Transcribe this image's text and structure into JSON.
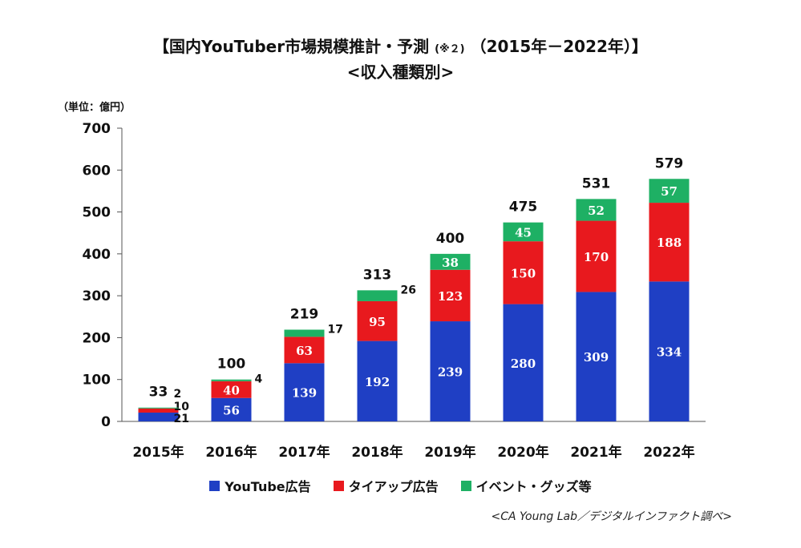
{
  "header": {
    "title_main": "【国内YouTuber市場規模推計・予測",
    "title_note": "(※２)",
    "title_years": "（2015年－2022年）】",
    "subtitle": "<収入種類別>"
  },
  "unit_label": "（単位：億円）",
  "source": "<CA Young Lab／デジタルインファクト調べ>",
  "colors": {
    "youtube_ad": "#1f3fc4",
    "tieup_ad": "#e8191e",
    "event_goods": "#1eb064"
  },
  "chart_data": {
    "type": "bar",
    "stacked": true,
    "categories": [
      "2015年",
      "2016年",
      "2017年",
      "2018年",
      "2019年",
      "2020年",
      "2021年",
      "2022年"
    ],
    "series": [
      {
        "name": "YouTube広告",
        "color": "#1f3fc4",
        "values": [
          21,
          56,
          139,
          192,
          239,
          280,
          309,
          334
        ]
      },
      {
        "name": "タイアップ広告",
        "color": "#e8191e",
        "values": [
          10,
          40,
          63,
          95,
          123,
          150,
          170,
          188
        ]
      },
      {
        "name": "イベント・グッズ等",
        "color": "#1eb064",
        "values": [
          2,
          4,
          17,
          26,
          38,
          45,
          52,
          57
        ]
      }
    ],
    "totals": [
      33,
      100,
      219,
      313,
      400,
      475,
      531,
      579
    ],
    "ylim": [
      0,
      700
    ],
    "yticks": [
      0,
      100,
      200,
      300,
      400,
      500,
      600,
      700
    ],
    "grid": false,
    "legend_position": "bottom"
  }
}
